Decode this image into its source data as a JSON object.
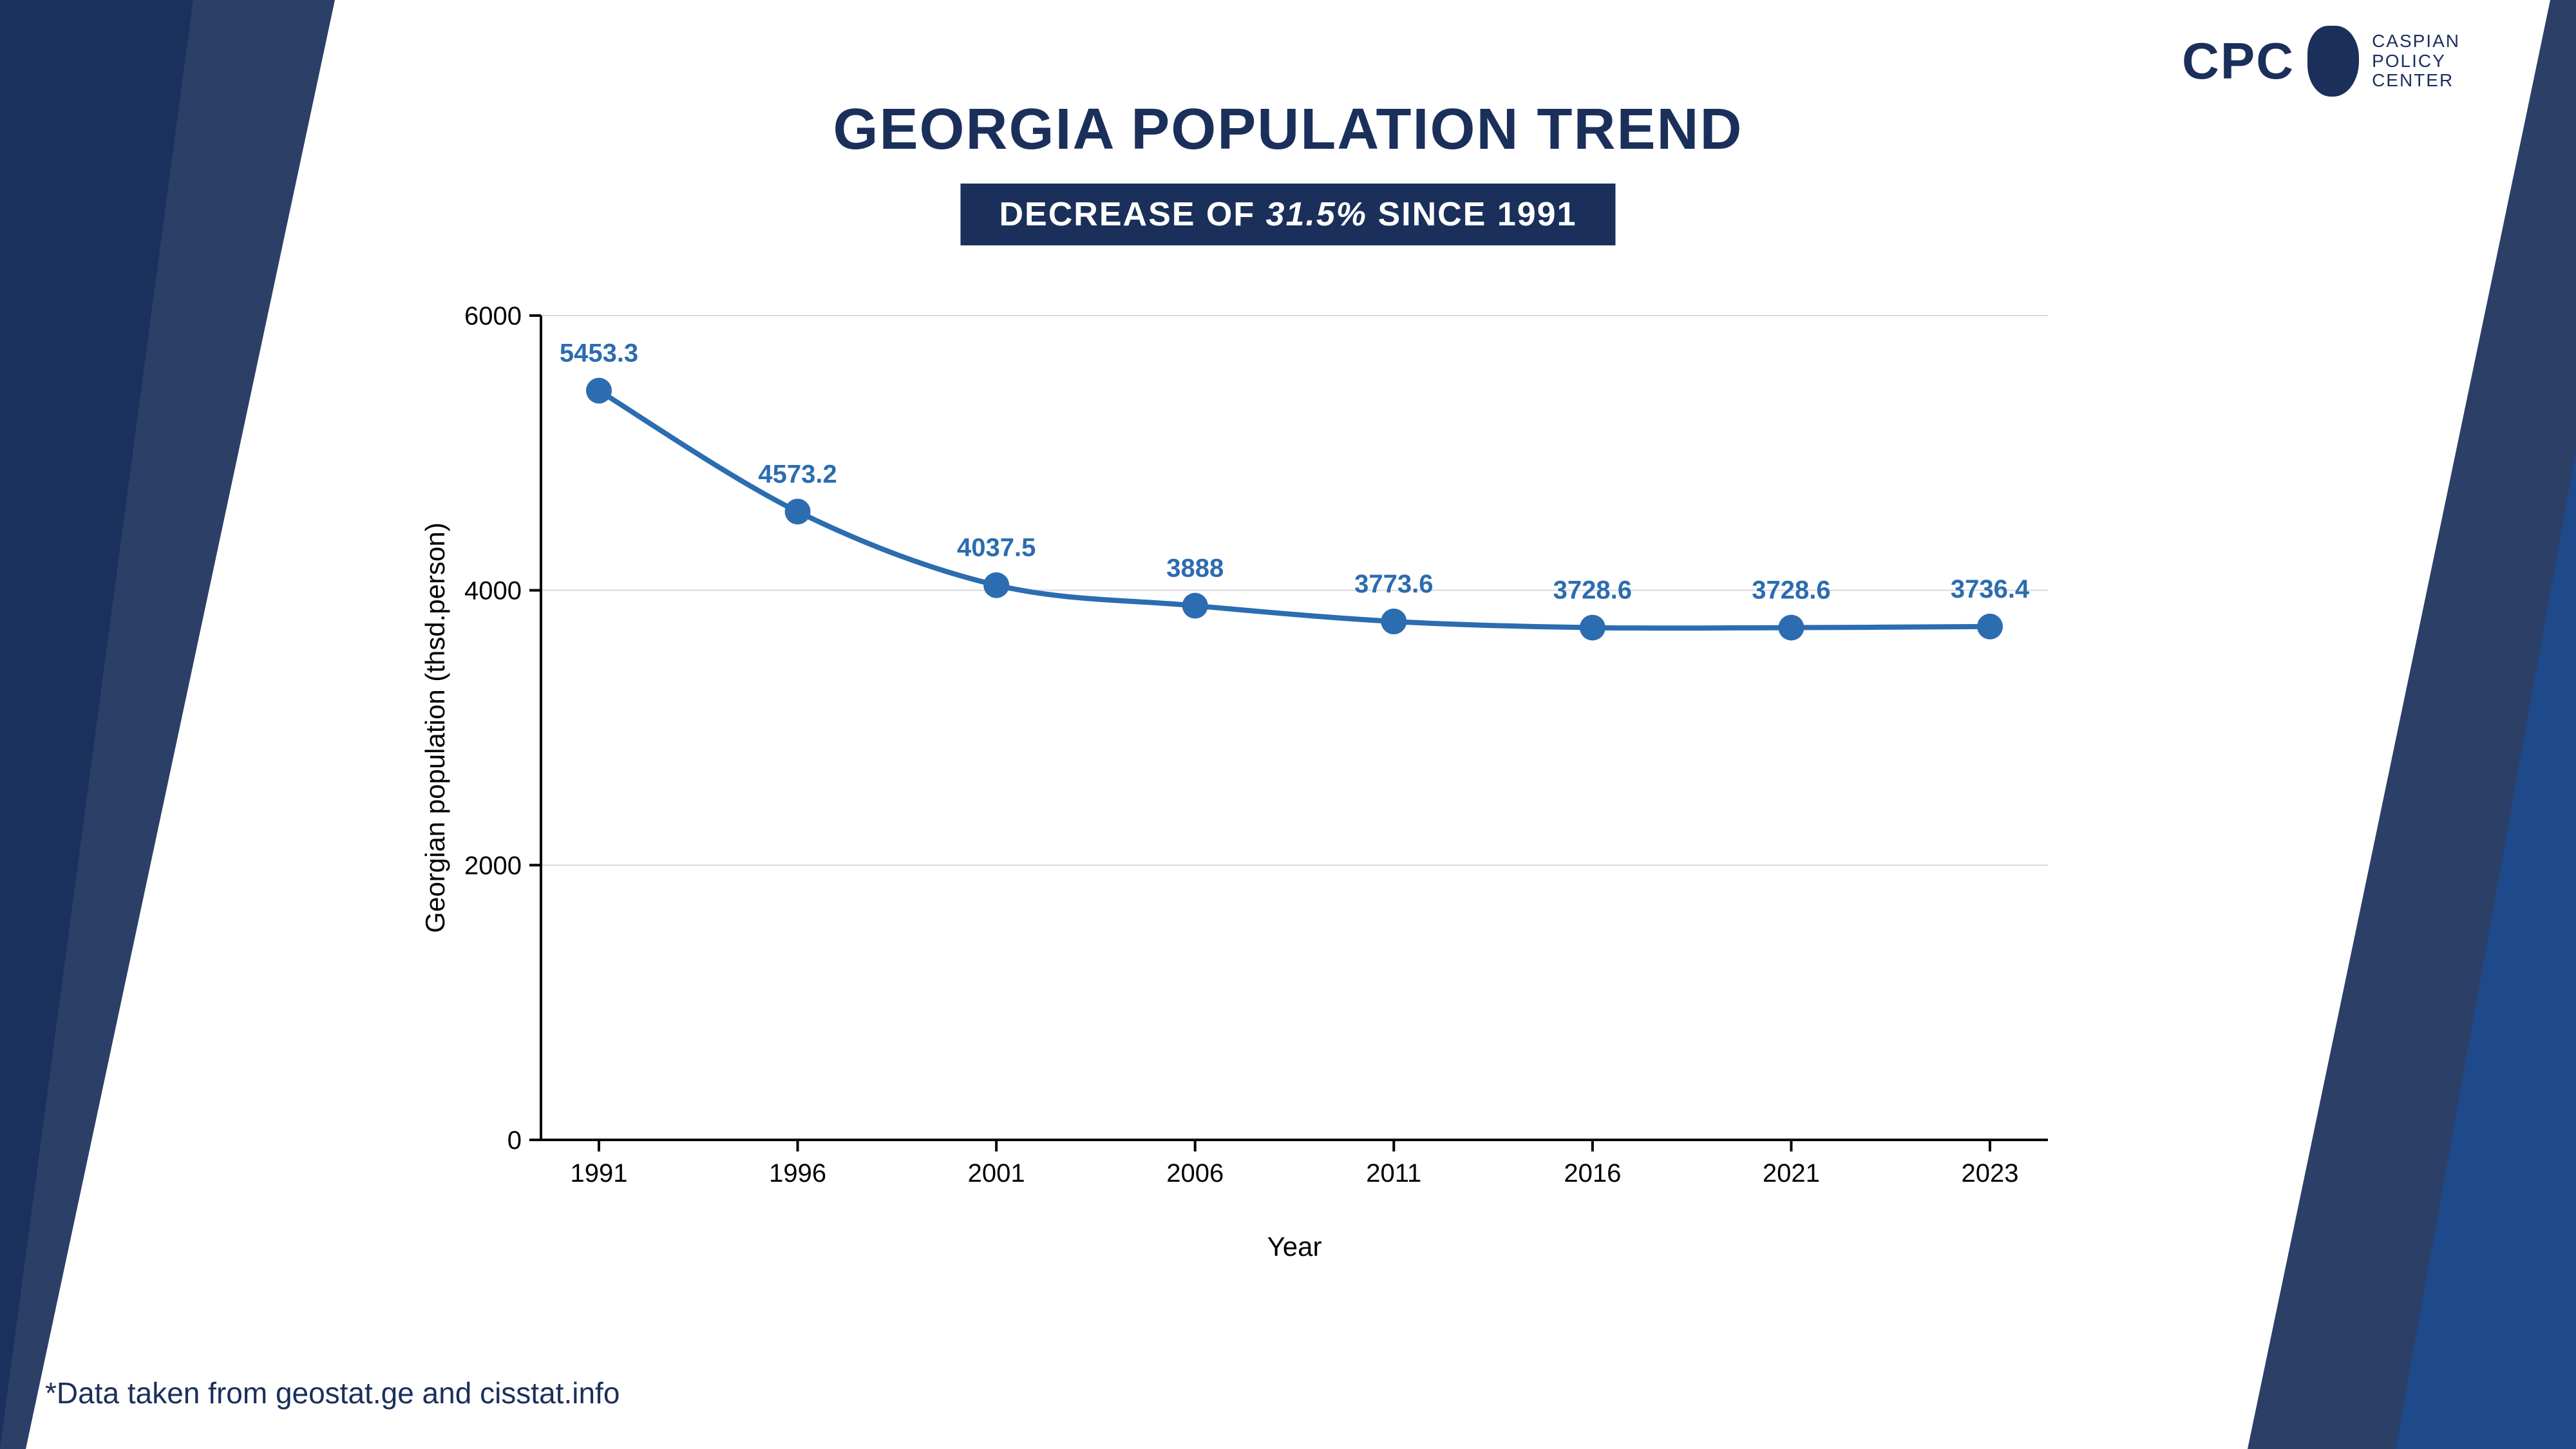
{
  "colors": {
    "navy": "#1a2f5a",
    "blue_mid": "#1e4a8c",
    "title": "#1a2f5a",
    "subtitle_bg": "#1a2f5a",
    "line": "#2c6cb0",
    "marker": "#2c6cb0",
    "axis": "#000000",
    "grid": "#d9d9d9",
    "label_text": "#2c6cb0",
    "axis_text": "#000000",
    "footnote": "#1a2f5a",
    "logo": "#1a2f5a",
    "bg": "#ffffff"
  },
  "logo": {
    "abbr": "CPC",
    "line1": "CASPIAN",
    "line2": "POLICY",
    "line3": "CENTER"
  },
  "title": "GEORGIA POPULATION TREND",
  "subtitle_prefix": "DECREASE OF ",
  "subtitle_pct": "31.5%",
  "subtitle_suffix": "  SINCE 1991",
  "footnote": "*Data taken from geostat.ge and cisstat.info",
  "chart": {
    "type": "line",
    "x_categories": [
      "1991",
      "1996",
      "2001",
      "2006",
      "2011",
      "2016",
      "2021",
      "2023"
    ],
    "values": [
      5453.3,
      4573.2,
      4037.5,
      3888,
      3773.6,
      3728.6,
      3728.6,
      3736.4
    ],
    "value_labels": [
      "5453.3",
      "4573.2",
      "4037.5",
      "3888",
      "3773.6",
      "3728.6",
      "3728.6",
      "3736.4"
    ],
    "ylim": [
      0,
      6000
    ],
    "yticks": [
      0,
      2000,
      4000,
      6000
    ],
    "ytick_labels": [
      "0",
      "2000",
      "4000",
      "6000"
    ],
    "ylabel": "Georgian population (thsd.person)",
    "xlabel": "Year",
    "line_width": 8,
    "marker_radius": 20,
    "grid_color": "#d9d9d9",
    "grid_dash": "none",
    "value_label_fontsize": 40,
    "axis_tick_fontsize": 40,
    "axis_label_fontsize": 42,
    "value_label_color": "#2c6cb0",
    "show_grid": true,
    "background": "#ffffff"
  }
}
